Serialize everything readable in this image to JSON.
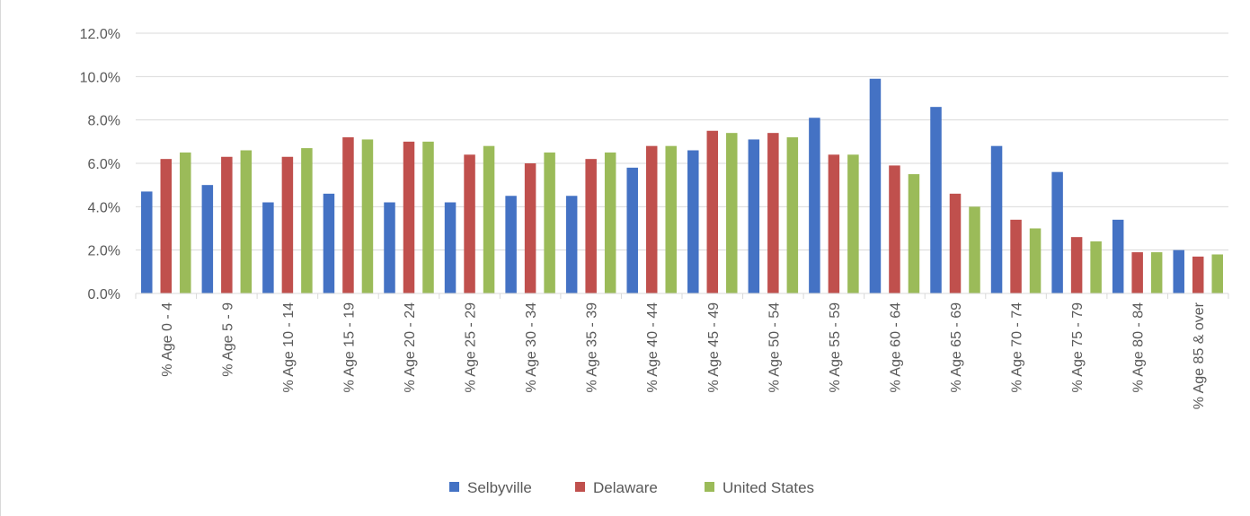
{
  "chart_data": {
    "type": "bar",
    "title": "",
    "xlabel": "",
    "ylabel": "",
    "ylim": [
      0,
      12
    ],
    "y_ticks": [
      "0.0%",
      "2.0%",
      "4.0%",
      "6.0%",
      "8.0%",
      "10.0%",
      "12.0%"
    ],
    "y_tick_values": [
      0,
      2,
      4,
      6,
      8,
      10,
      12
    ],
    "grid": true,
    "legend_position": "bottom",
    "categories": [
      "% Age 0 - 4",
      "% Age 5 - 9",
      "% Age 10 - 14",
      "% Age 15 - 19",
      "% Age 20 - 24",
      "% Age 25 - 29",
      "% Age 30 - 34",
      "% Age 35 - 39",
      "% Age 40 - 44",
      "% Age 45 - 49",
      "% Age 50 - 54",
      "% Age 55 - 59",
      "% Age 60 - 64",
      "% Age 65 - 69",
      "% Age 70 - 74",
      "% Age 75 - 79",
      "% Age 80 - 84",
      "% Age 85 & over"
    ],
    "series": [
      {
        "name": "Selbyville",
        "color": "#4472c4",
        "values": [
          4.7,
          5.0,
          4.2,
          4.6,
          4.2,
          4.2,
          4.5,
          4.5,
          5.8,
          6.6,
          7.1,
          8.1,
          9.9,
          8.6,
          6.8,
          5.6,
          3.4,
          2.0
        ]
      },
      {
        "name": "Delaware",
        "color": "#c0504d",
        "values": [
          6.2,
          6.3,
          6.3,
          7.2,
          7.0,
          6.4,
          6.0,
          6.2,
          6.8,
          7.5,
          7.4,
          6.4,
          5.9,
          4.6,
          3.4,
          2.6,
          1.9,
          1.7
        ]
      },
      {
        "name": "United States",
        "color": "#9bbb59",
        "values": [
          6.5,
          6.6,
          6.7,
          7.1,
          7.0,
          6.8,
          6.5,
          6.5,
          6.8,
          7.4,
          7.2,
          6.4,
          5.5,
          4.0,
          3.0,
          2.4,
          1.9,
          1.8
        ]
      }
    ]
  }
}
